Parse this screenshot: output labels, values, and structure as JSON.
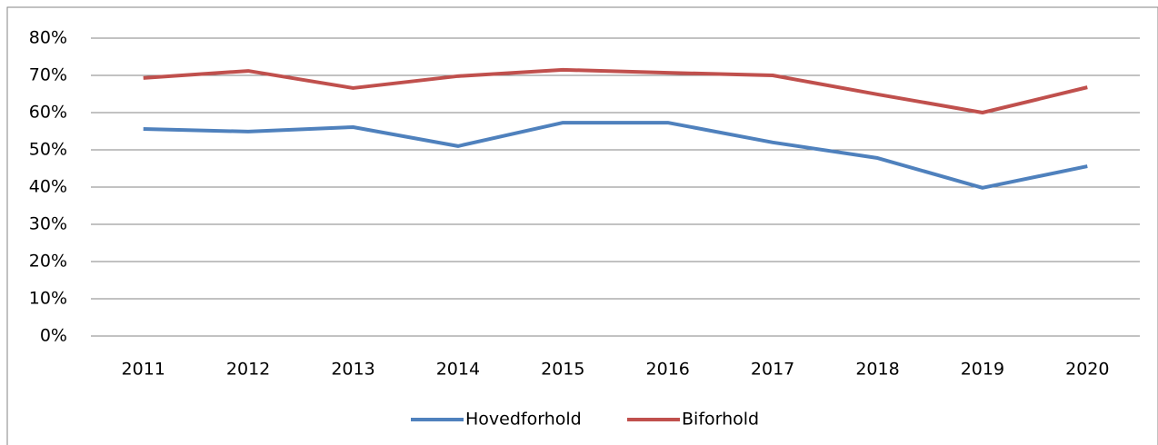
{
  "chart_data": {
    "type": "line",
    "categories": [
      "2011",
      "2012",
      "2013",
      "2014",
      "2015",
      "2016",
      "2017",
      "2018",
      "2019",
      "2020"
    ],
    "series": [
      {
        "name": "Hovedforhold",
        "color": "#4f81bd",
        "values": [
          55.6,
          54.9,
          56.1,
          51,
          57.3,
          57.3,
          52,
          47.8,
          39.8,
          45.6
        ]
      },
      {
        "name": "Biforhold",
        "color": "#c0504d",
        "values": [
          69.3,
          71.2,
          66.6,
          69.8,
          71.5,
          70.7,
          70,
          64.9,
          60,
          66.8
        ]
      }
    ],
    "ylim": [
      0,
      80
    ],
    "yticks": [
      {
        "value": 0,
        "label": "0%"
      },
      {
        "value": 10,
        "label": "10%"
      },
      {
        "value": 20,
        "label": "20%"
      },
      {
        "value": 30,
        "label": "30%"
      },
      {
        "value": 40,
        "label": "40%"
      },
      {
        "value": 50,
        "label": "50%"
      },
      {
        "value": 60,
        "label": "60%"
      },
      {
        "value": 70,
        "label": "70%"
      },
      {
        "value": 80,
        "label": "80%"
      }
    ],
    "grid": true,
    "legend": "bottom"
  }
}
